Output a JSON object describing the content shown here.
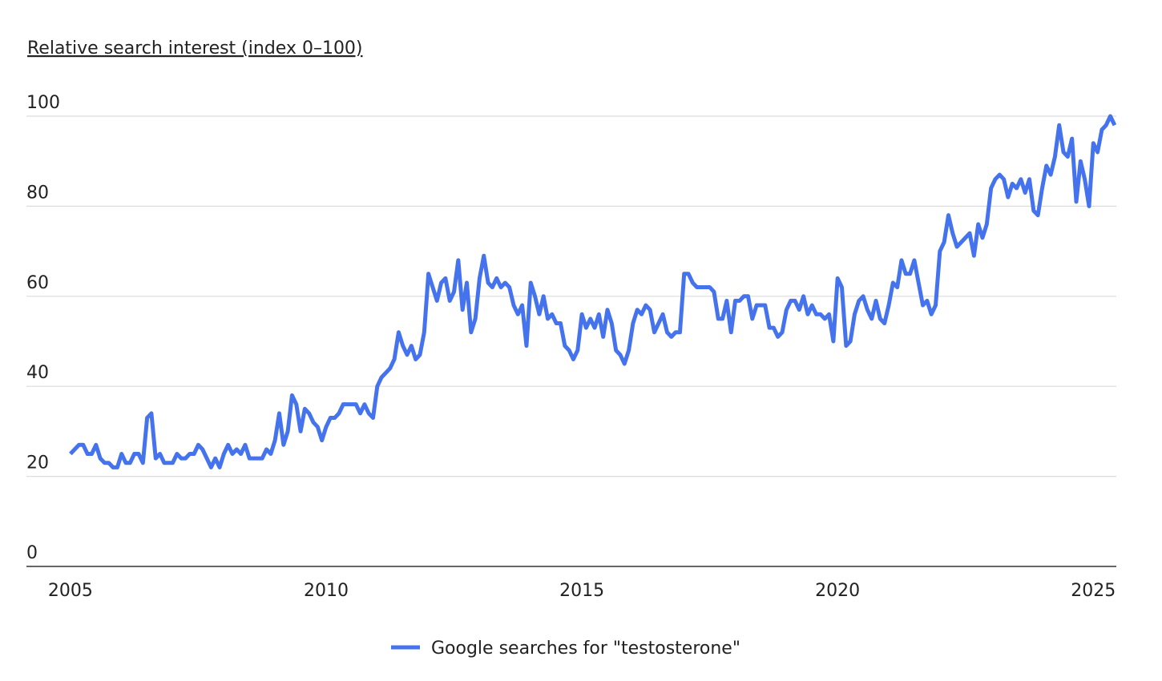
{
  "chart_data": {
    "type": "line",
    "y_label": "Relative search interest (index 0–100)",
    "x": [
      2005,
      2005.083,
      2005.167,
      2005.25,
      2005.333,
      2005.417,
      2005.5,
      2005.583,
      2005.667,
      2005.75,
      2005.833,
      2005.917,
      2006,
      2006.083,
      2006.167,
      2006.25,
      2006.333,
      2006.417,
      2006.5,
      2006.583,
      2006.667,
      2006.75,
      2006.833,
      2006.917,
      2007,
      2007.083,
      2007.167,
      2007.25,
      2007.333,
      2007.417,
      2007.5,
      2007.583,
      2007.667,
      2007.75,
      2007.833,
      2007.917,
      2008,
      2008.083,
      2008.167,
      2008.25,
      2008.333,
      2008.417,
      2008.5,
      2008.583,
      2008.667,
      2008.75,
      2008.833,
      2008.917,
      2009,
      2009.083,
      2009.167,
      2009.25,
      2009.333,
      2009.417,
      2009.5,
      2009.583,
      2009.667,
      2009.75,
      2009.833,
      2009.917,
      2010,
      2010.083,
      2010.167,
      2010.25,
      2010.333,
      2010.417,
      2010.5,
      2010.583,
      2010.667,
      2010.75,
      2010.833,
      2010.917,
      2011,
      2011.083,
      2011.167,
      2011.25,
      2011.333,
      2011.417,
      2011.5,
      2011.583,
      2011.667,
      2011.75,
      2011.833,
      2011.917,
      2012,
      2012.083,
      2012.167,
      2012.25,
      2012.333,
      2012.417,
      2012.5,
      2012.583,
      2012.667,
      2012.75,
      2012.833,
      2012.917,
      2013,
      2013.083,
      2013.167,
      2013.25,
      2013.333,
      2013.417,
      2013.5,
      2013.583,
      2013.667,
      2013.75,
      2013.833,
      2013.917,
      2014,
      2014.083,
      2014.167,
      2014.25,
      2014.333,
      2014.417,
      2014.5,
      2014.583,
      2014.667,
      2014.75,
      2014.833,
      2014.917,
      2015,
      2015.083,
      2015.167,
      2015.25,
      2015.333,
      2015.417,
      2015.5,
      2015.583,
      2015.667,
      2015.75,
      2015.833,
      2015.917,
      2016,
      2016.083,
      2016.167,
      2016.25,
      2016.333,
      2016.417,
      2016.5,
      2016.583,
      2016.667,
      2016.75,
      2016.833,
      2016.917,
      2017,
      2017.083,
      2017.167,
      2017.25,
      2017.333,
      2017.417,
      2017.5,
      2017.583,
      2017.667,
      2017.75,
      2017.833,
      2017.917,
      2018,
      2018.083,
      2018.167,
      2018.25,
      2018.333,
      2018.417,
      2018.5,
      2018.583,
      2018.667,
      2018.75,
      2018.833,
      2018.917,
      2019,
      2019.083,
      2019.167,
      2019.25,
      2019.333,
      2019.417,
      2019.5,
      2019.583,
      2019.667,
      2019.75,
      2019.833,
      2019.917,
      2020,
      2020.083,
      2020.167,
      2020.25,
      2020.333,
      2020.417,
      2020.5,
      2020.583,
      2020.667,
      2020.75,
      2020.833,
      2020.917,
      2021,
      2021.083,
      2021.167,
      2021.25,
      2021.333,
      2021.417,
      2021.5,
      2021.583,
      2021.667,
      2021.75,
      2021.833,
      2021.917,
      2022,
      2022.083,
      2022.167,
      2022.25,
      2022.333,
      2022.417,
      2022.5,
      2022.583,
      2022.667,
      2022.75,
      2022.833,
      2022.917,
      2023,
      2023.083,
      2023.167,
      2023.25,
      2023.333,
      2023.417,
      2023.5,
      2023.583,
      2023.667,
      2023.75,
      2023.833,
      2023.917,
      2024,
      2024.083,
      2024.167,
      2024.25,
      2024.333,
      2024.417,
      2024.5,
      2024.583,
      2024.667,
      2024.75,
      2024.833,
      2024.917,
      2025,
      2025.083,
      2025.167,
      2025.25,
      2025.333,
      2025.417
    ],
    "series": [
      {
        "name": "Google searches for \"testosterone\"",
        "color": "#4573ee",
        "values": [
          25,
          26,
          27,
          27,
          25,
          25,
          27,
          24,
          23,
          23,
          22,
          22,
          25,
          23,
          23,
          25,
          25,
          23,
          33,
          34,
          24,
          25,
          23,
          23,
          23,
          25,
          24,
          24,
          25,
          25,
          27,
          26,
          24,
          22,
          24,
          22,
          25,
          27,
          25,
          26,
          25,
          27,
          24,
          24,
          24,
          24,
          26,
          25,
          28,
          34,
          27,
          30,
          38,
          36,
          30,
          35,
          34,
          32,
          31,
          28,
          31,
          33,
          33,
          34,
          36,
          36,
          36,
          36,
          34,
          36,
          34,
          33,
          40,
          42,
          43,
          44,
          46,
          52,
          49,
          47,
          49,
          46,
          47,
          52,
          65,
          62,
          59,
          63,
          64,
          59,
          61,
          68,
          57,
          63,
          52,
          55,
          64,
          69,
          63,
          62,
          64,
          62,
          63,
          62,
          58,
          56,
          58,
          49,
          63,
          60,
          56,
          60,
          55,
          56,
          54,
          54,
          49,
          48,
          46,
          48,
          56,
          53,
          55,
          53,
          56,
          51,
          57,
          54,
          48,
          47,
          45,
          48,
          54,
          57,
          56,
          58,
          57,
          52,
          54,
          56,
          52,
          51,
          52,
          52,
          65,
          65,
          63,
          62,
          62,
          62,
          62,
          61,
          55,
          55,
          59,
          52,
          59,
          59,
          60,
          60,
          55,
          58,
          58,
          58,
          53,
          53,
          51,
          52,
          57,
          59,
          59,
          57,
          60,
          56,
          58,
          56,
          56,
          55,
          56,
          50,
          64,
          62,
          49,
          50,
          56,
          59,
          60,
          57,
          55,
          59,
          55,
          54,
          58,
          63,
          62,
          68,
          65,
          65,
          68,
          63,
          58,
          59,
          56,
          58,
          70,
          72,
          78,
          74,
          71,
          72,
          73,
          74,
          69,
          76,
          73,
          76,
          84,
          86,
          87,
          86,
          82,
          85,
          84,
          86,
          83,
          86,
          79,
          78,
          84,
          89,
          87,
          91,
          98,
          92,
          91,
          95,
          81,
          90,
          86,
          80,
          94,
          92,
          97,
          98,
          100,
          98
        ]
      }
    ],
    "xlim": [
      2004.14,
      2025.45
    ],
    "xticks": [
      2005,
      2010,
      2015,
      2020,
      2025
    ],
    "ylim": [
      0,
      100
    ],
    "yticks": [
      0,
      20,
      40,
      60,
      80,
      100
    ],
    "grid": true
  }
}
